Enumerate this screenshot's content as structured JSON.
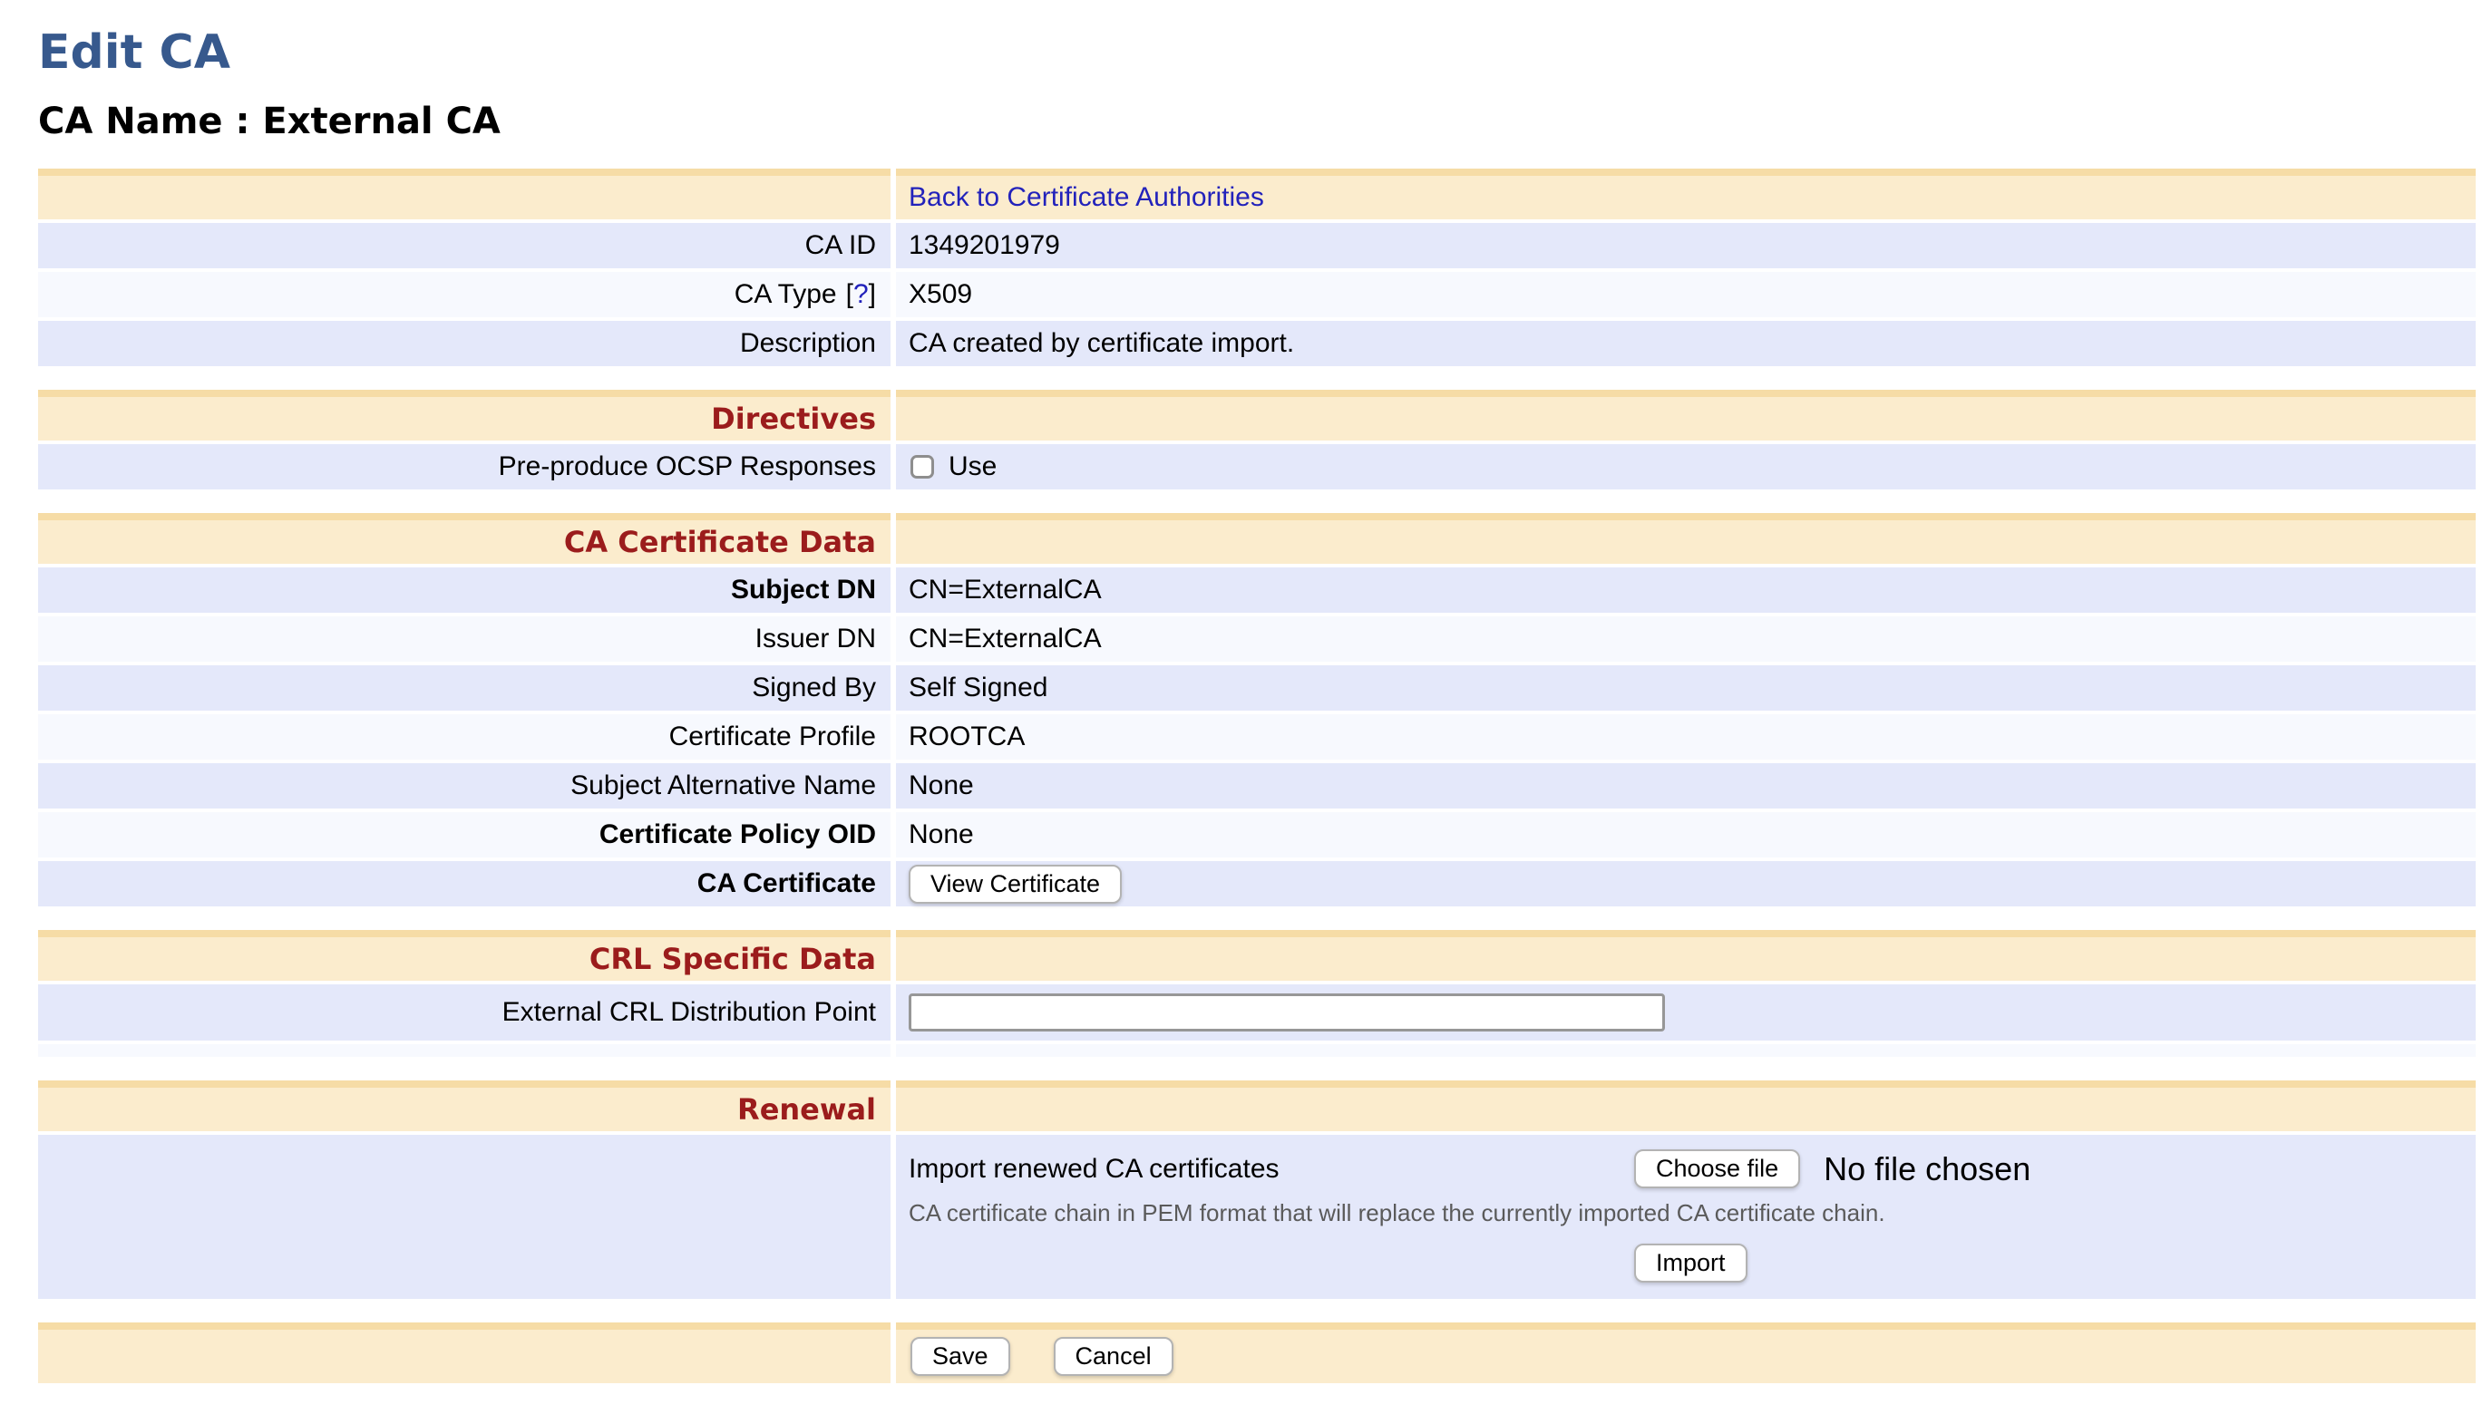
{
  "header": {
    "title": "Edit CA",
    "ca_name": "CA Name : External CA"
  },
  "colors": {
    "title_blue": "#37598d",
    "section_red": "#9b1c1c",
    "link_blue": "#2222bb",
    "header_cream": "#fbeccd",
    "header_strip_tan": "#f6dca6",
    "row_lavender": "#e4e8fa",
    "row_light": "#f7f9fe"
  },
  "general": {
    "back_link": "Back to Certificate Authorities",
    "rows": [
      {
        "label": "CA ID",
        "value": "1349201979"
      },
      {
        "label": "CA Type",
        "help_open": "[",
        "help_mark": "?",
        "help_close": "]",
        "value": "X509"
      },
      {
        "label": "Description",
        "value": "CA created by certificate import."
      }
    ]
  },
  "directives": {
    "title": "Directives",
    "ocsp_label": "Pre-produce OCSP Responses",
    "ocsp_checkbox_label": "Use",
    "ocsp_checked": false
  },
  "ca_certificate_data": {
    "title": "CA Certificate Data",
    "rows": [
      {
        "label": "Subject DN",
        "value": "CN=ExternalCA"
      },
      {
        "label": "Issuer DN",
        "value": "CN=ExternalCA"
      },
      {
        "label": "Signed By",
        "value": "Self Signed"
      },
      {
        "label": "Certificate Profile",
        "value": "ROOTCA"
      },
      {
        "label": "Subject Alternative Name",
        "value": "None"
      },
      {
        "label": "Certificate Policy OID",
        "value": "None"
      },
      {
        "label": "CA Certificate",
        "button_label": "View Certificate"
      }
    ]
  },
  "crl": {
    "title": "CRL Specific Data",
    "label": "External CRL Distribution Point",
    "input_value": ""
  },
  "renewal": {
    "title": "Renewal",
    "label": "Import renewed CA certificates",
    "choose_file_label": "Choose file",
    "no_file_text": "No file chosen",
    "help": "CA certificate chain in PEM format that will replace the currently imported CA certificate chain.",
    "import_label": "Import"
  },
  "footer": {
    "save_label": "Save",
    "cancel_label": "Cancel"
  }
}
